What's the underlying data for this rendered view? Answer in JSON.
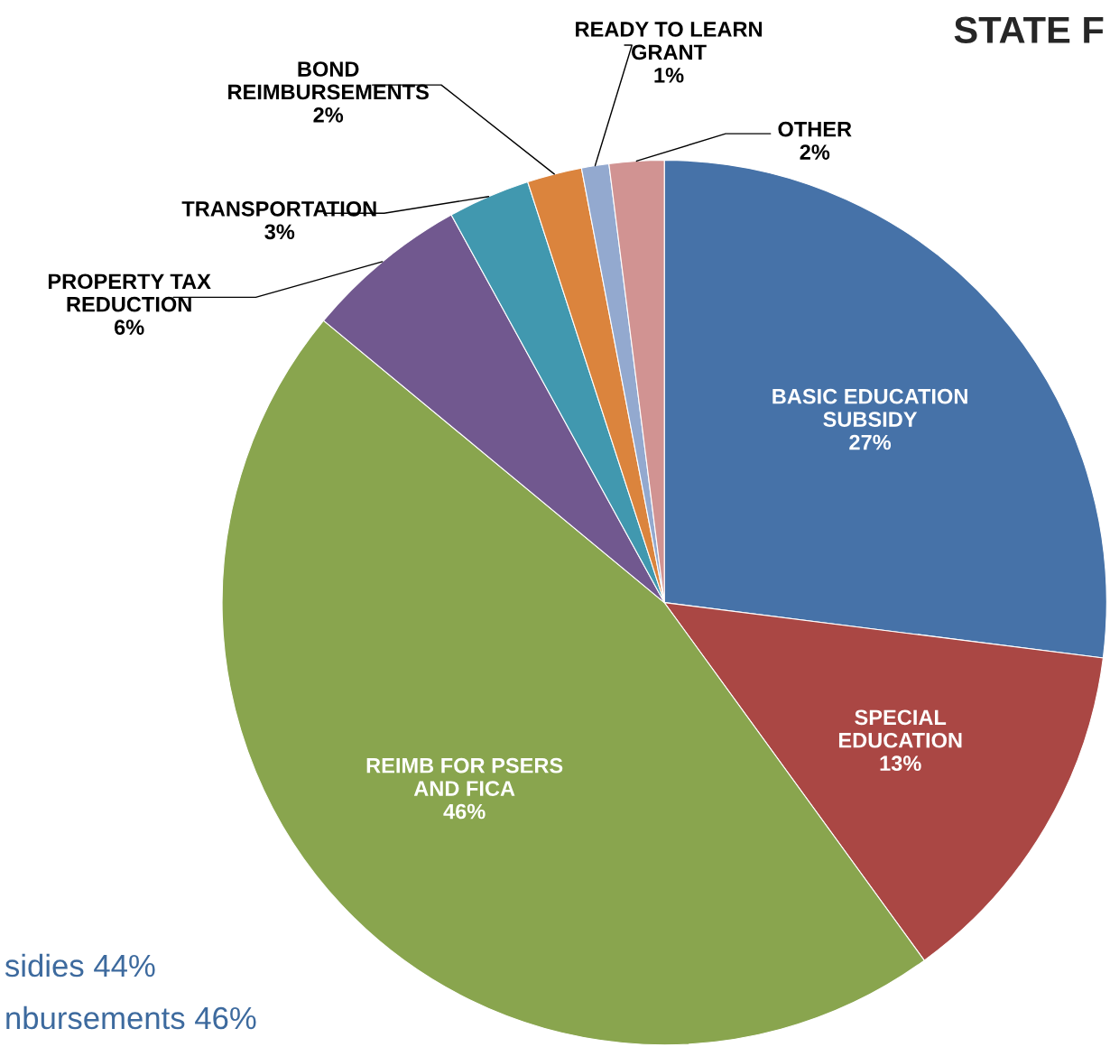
{
  "chart_data": {
    "type": "pie",
    "title": "STATE F",
    "categories": [
      "BASIC EDUCATION\nSUBSIDY",
      "SPECIAL\nEDUCATION",
      "REIMB FOR PSERS\nAND FICA",
      "PROPERTY TAX\nREDUCTION",
      "TRANSPORTATION",
      "BOND\nREIMBURSEMENTS",
      "READY TO LEARN\nGRANT",
      "OTHER"
    ],
    "values": [
      27,
      13,
      46,
      6,
      3,
      2,
      1,
      2
    ],
    "colors": [
      "#4672a8",
      "#aa4744",
      "#89a54e",
      "#71588f",
      "#4198af",
      "#db843d",
      "#93a9cf",
      "#d19392"
    ],
    "value_labels": [
      "27%",
      "13%",
      "46%",
      "6%",
      "3%",
      "2%",
      "1%",
      "2%"
    ],
    "annotations": [
      "sidies 44%",
      "nbursements 46%"
    ]
  }
}
